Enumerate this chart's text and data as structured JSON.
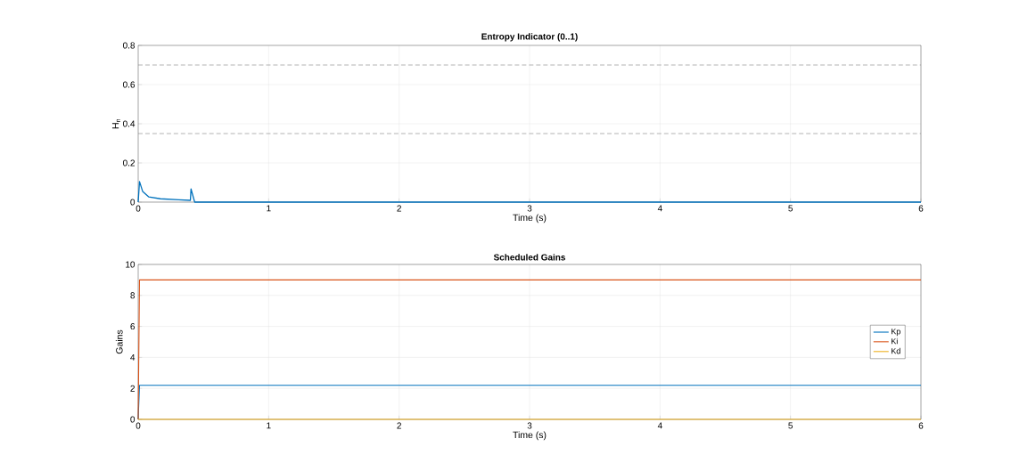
{
  "chart_data": [
    {
      "type": "line",
      "title": "Entropy Indicator (0..1)",
      "xlabel": "Time (s)",
      "ylabel": "H$_{n}$",
      "series": [
        {
          "color": "#0072bd",
          "x": [
            0,
            0.01,
            0.034,
            0.08,
            0.17,
            0.31,
            0.4,
            0.405,
            0.433,
            6
          ],
          "values": [
            0,
            0.105,
            0.055,
            0.027,
            0.017,
            0.012,
            0.009,
            0.067,
            0,
            0
          ]
        }
      ],
      "xlim": [
        0,
        6
      ],
      "ylim": [
        0,
        0.8
      ],
      "xticks": [
        0,
        1,
        2,
        3,
        4,
        5,
        6
      ],
      "yticks": [
        0,
        0.2,
        0.4,
        0.6,
        0.8
      ],
      "grid": true,
      "legend": false,
      "marker": "none",
      "ref_lines": [
        {
          "axis": "y",
          "value": 0.7,
          "color": "#808080",
          "line_style": "dashed"
        },
        {
          "axis": "y",
          "value": 0.35,
          "color": "#808080",
          "line_style": "dashed"
        }
      ]
    },
    {
      "type": "line",
      "title": "Scheduled Gains",
      "xlabel": "Time (s)",
      "ylabel": "Gains",
      "series": [
        {
          "name": "Kp",
          "color": "#0072bd",
          "x": [
            0,
            0.01,
            6
          ],
          "values": [
            0,
            2.2,
            2.2
          ]
        },
        {
          "name": "Ki",
          "color": "#d95319",
          "x": [
            0,
            0.01,
            6
          ],
          "values": [
            0,
            9,
            9
          ]
        },
        {
          "name": "Kd",
          "color": "#edb120",
          "x": [
            0,
            6
          ],
          "values": [
            0,
            0
          ]
        }
      ],
      "xlim": [
        0,
        6
      ],
      "ylim": [
        0,
        10
      ],
      "xticks": [
        0,
        1,
        2,
        3,
        4,
        5,
        6
      ],
      "yticks": [
        0,
        2,
        4,
        6,
        8,
        10
      ],
      "grid": true,
      "legend": "right",
      "marker": "none"
    }
  ]
}
